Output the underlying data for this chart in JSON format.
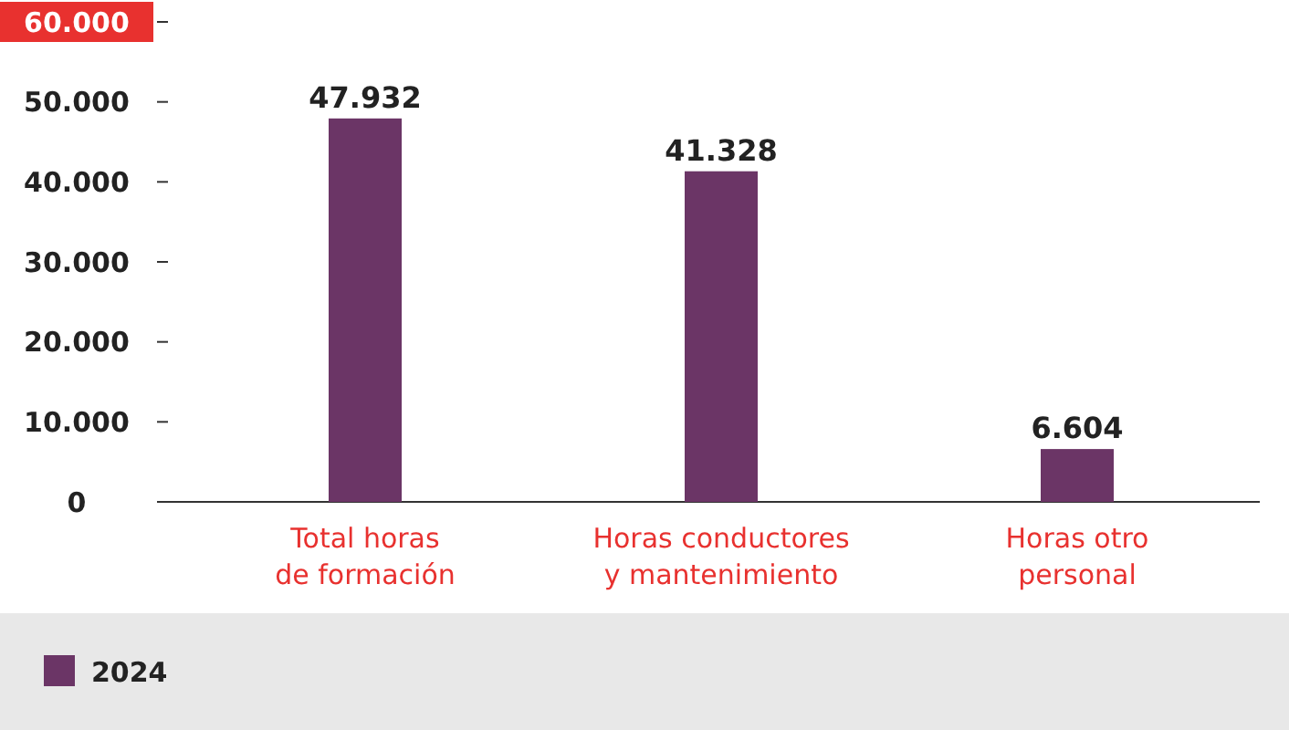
{
  "chart_data": {
    "type": "bar",
    "categories": [
      "Total horas de formación",
      "Horas conductores y mantenimiento",
      "Horas otro personal"
    ],
    "series": [
      {
        "name": "2024",
        "color": "#6b3566",
        "values": [
          47932,
          41328,
          6604
        ],
        "value_labels": [
          "47.932",
          "41.328",
          "6.604"
        ]
      }
    ],
    "ylim": [
      0,
      60000
    ],
    "yticks": [
      {
        "value": 0,
        "label": "0"
      },
      {
        "value": 10000,
        "label": "10.000"
      },
      {
        "value": 20000,
        "label": "20.000"
      },
      {
        "value": 30000,
        "label": "30.000"
      },
      {
        "value": 40000,
        "label": "40.000"
      },
      {
        "value": 50000,
        "label": "50.000"
      },
      {
        "value": 60000,
        "label": "60.000"
      }
    ],
    "grid": false,
    "legend": "bottom"
  }
}
